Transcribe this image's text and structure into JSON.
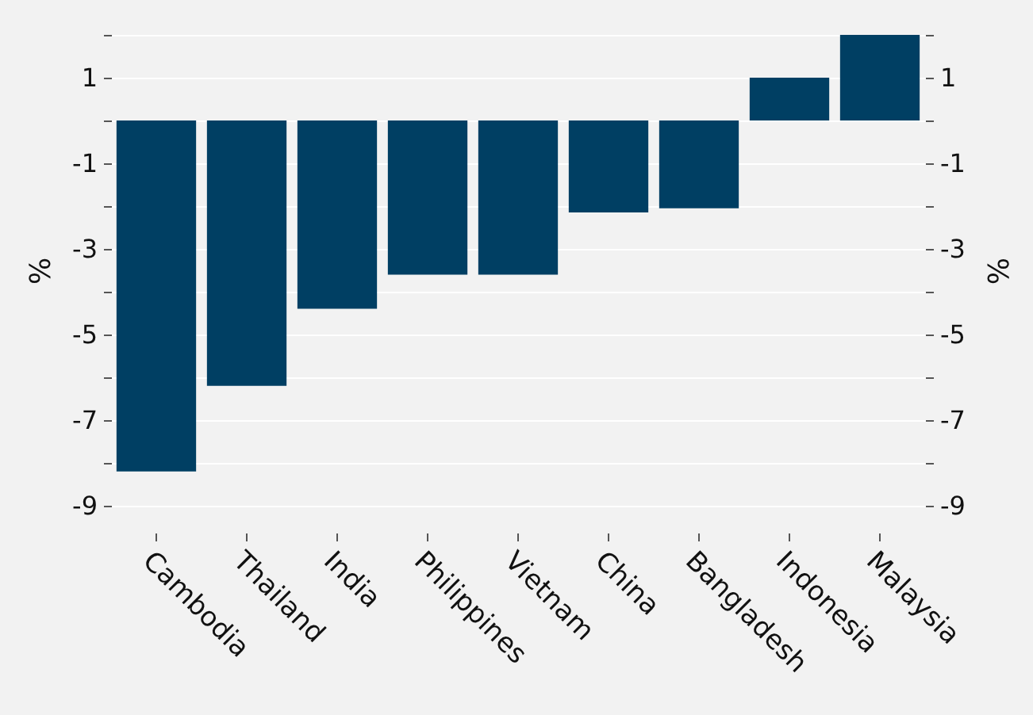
{
  "chart_data": {
    "type": "bar",
    "categories": [
      "Cambodia",
      "Thailand",
      "India",
      "Philippines",
      "Vietnam",
      "China",
      "Bangladesh",
      "Indonesia",
      "Malaysia"
    ],
    "values": [
      -8.2,
      -6.2,
      -4.4,
      -3.6,
      -3.6,
      -2.15,
      -2.05,
      1.0,
      2.0
    ],
    "color": "#003f63",
    "ylabel": "%",
    "y2label": "%",
    "ylim": [
      -9,
      2
    ],
    "yticks": [
      {
        "value": 2,
        "label": null
      },
      1,
      {
        "value": 0,
        "label": null
      },
      -1,
      {
        "value": -2,
        "label": null
      },
      -3,
      {
        "value": -4,
        "label": null
      },
      -5,
      {
        "value": -6,
        "label": null
      },
      -7,
      {
        "value": -8,
        "label": null
      },
      -9
    ],
    "y2lim": [
      -9,
      2
    ],
    "y2ticks": [
      {
        "value": 2,
        "label": null
      },
      1,
      {
        "value": 0,
        "label": null
      },
      -1,
      {
        "value": -2,
        "label": null
      },
      -3,
      {
        "value": -4,
        "label": null
      },
      -5,
      {
        "value": -6,
        "label": null
      },
      -7,
      {
        "value": -8,
        "label": null
      },
      -9
    ],
    "grid": "y"
  }
}
